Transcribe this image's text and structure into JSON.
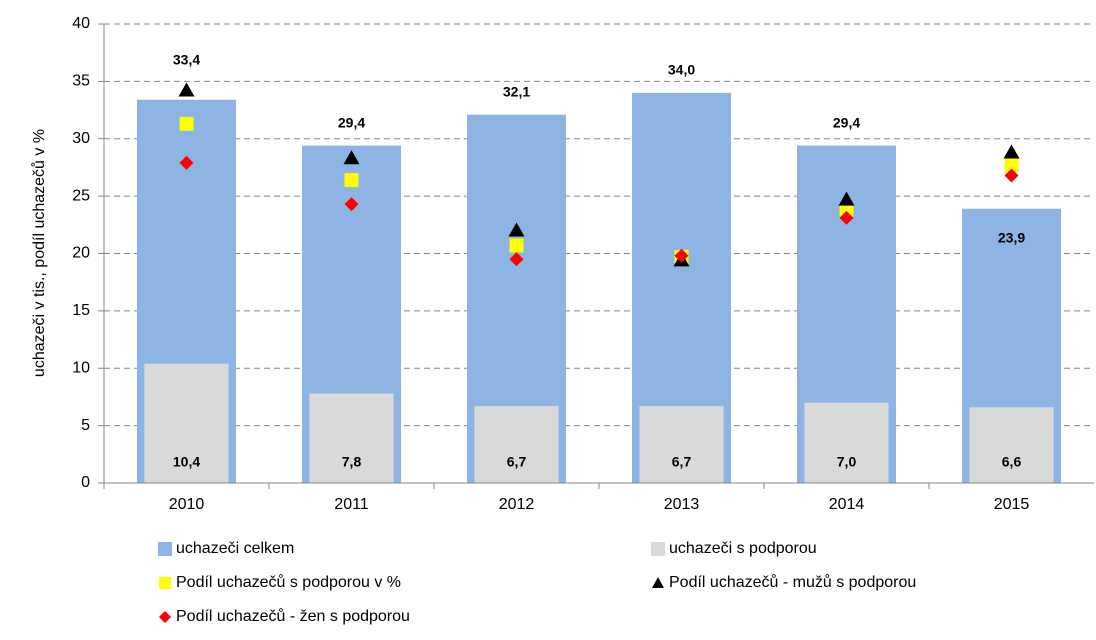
{
  "chart_data": {
    "type": "bar",
    "y_label": "uchazeči v tis., podíl uchazečů v %",
    "categories": [
      "2010",
      "2011",
      "2012",
      "2013",
      "2014",
      "2015"
    ],
    "ylim": [
      0,
      40
    ],
    "yticks": [
      0,
      5,
      10,
      15,
      20,
      25,
      30,
      35,
      40
    ],
    "grid": true,
    "series": [
      {
        "name": "uchazeči celkem",
        "type": "bar",
        "color": "#8eb4e3",
        "values": [
          33.4,
          29.4,
          32.1,
          34.0,
          29.4,
          23.9
        ],
        "value_labels": [
          "33,4",
          "29,4",
          "32,1",
          "34,0",
          "29,4",
          "23,9"
        ]
      },
      {
        "name": "uchazeči s podporou",
        "type": "bar",
        "color": "#d9d9d9",
        "values": [
          10.4,
          7.8,
          6.7,
          6.7,
          7.0,
          6.6
        ],
        "value_labels": [
          "10,4",
          "7,8",
          "6,7",
          "6,7",
          "7,0",
          "6,6"
        ]
      },
      {
        "name": "Podíl uchazečů s podporou v %",
        "type": "scatter",
        "marker": "square",
        "color": "#ffff00",
        "values": [
          31.3,
          26.4,
          20.7,
          19.7,
          23.8,
          27.7
        ]
      },
      {
        "name": "Podíl uchazečů - mužů s podporou",
        "type": "scatter",
        "marker": "triangle",
        "color": "#000000",
        "values": [
          34.2,
          28.3,
          22.0,
          19.4,
          24.7,
          28.8
        ]
      },
      {
        "name": "Podíl uchazečů - žen s podporou",
        "type": "scatter",
        "marker": "diamond",
        "color": "#ff0000",
        "values": [
          27.9,
          24.3,
          19.5,
          19.8,
          23.1,
          26.8
        ]
      }
    ]
  }
}
